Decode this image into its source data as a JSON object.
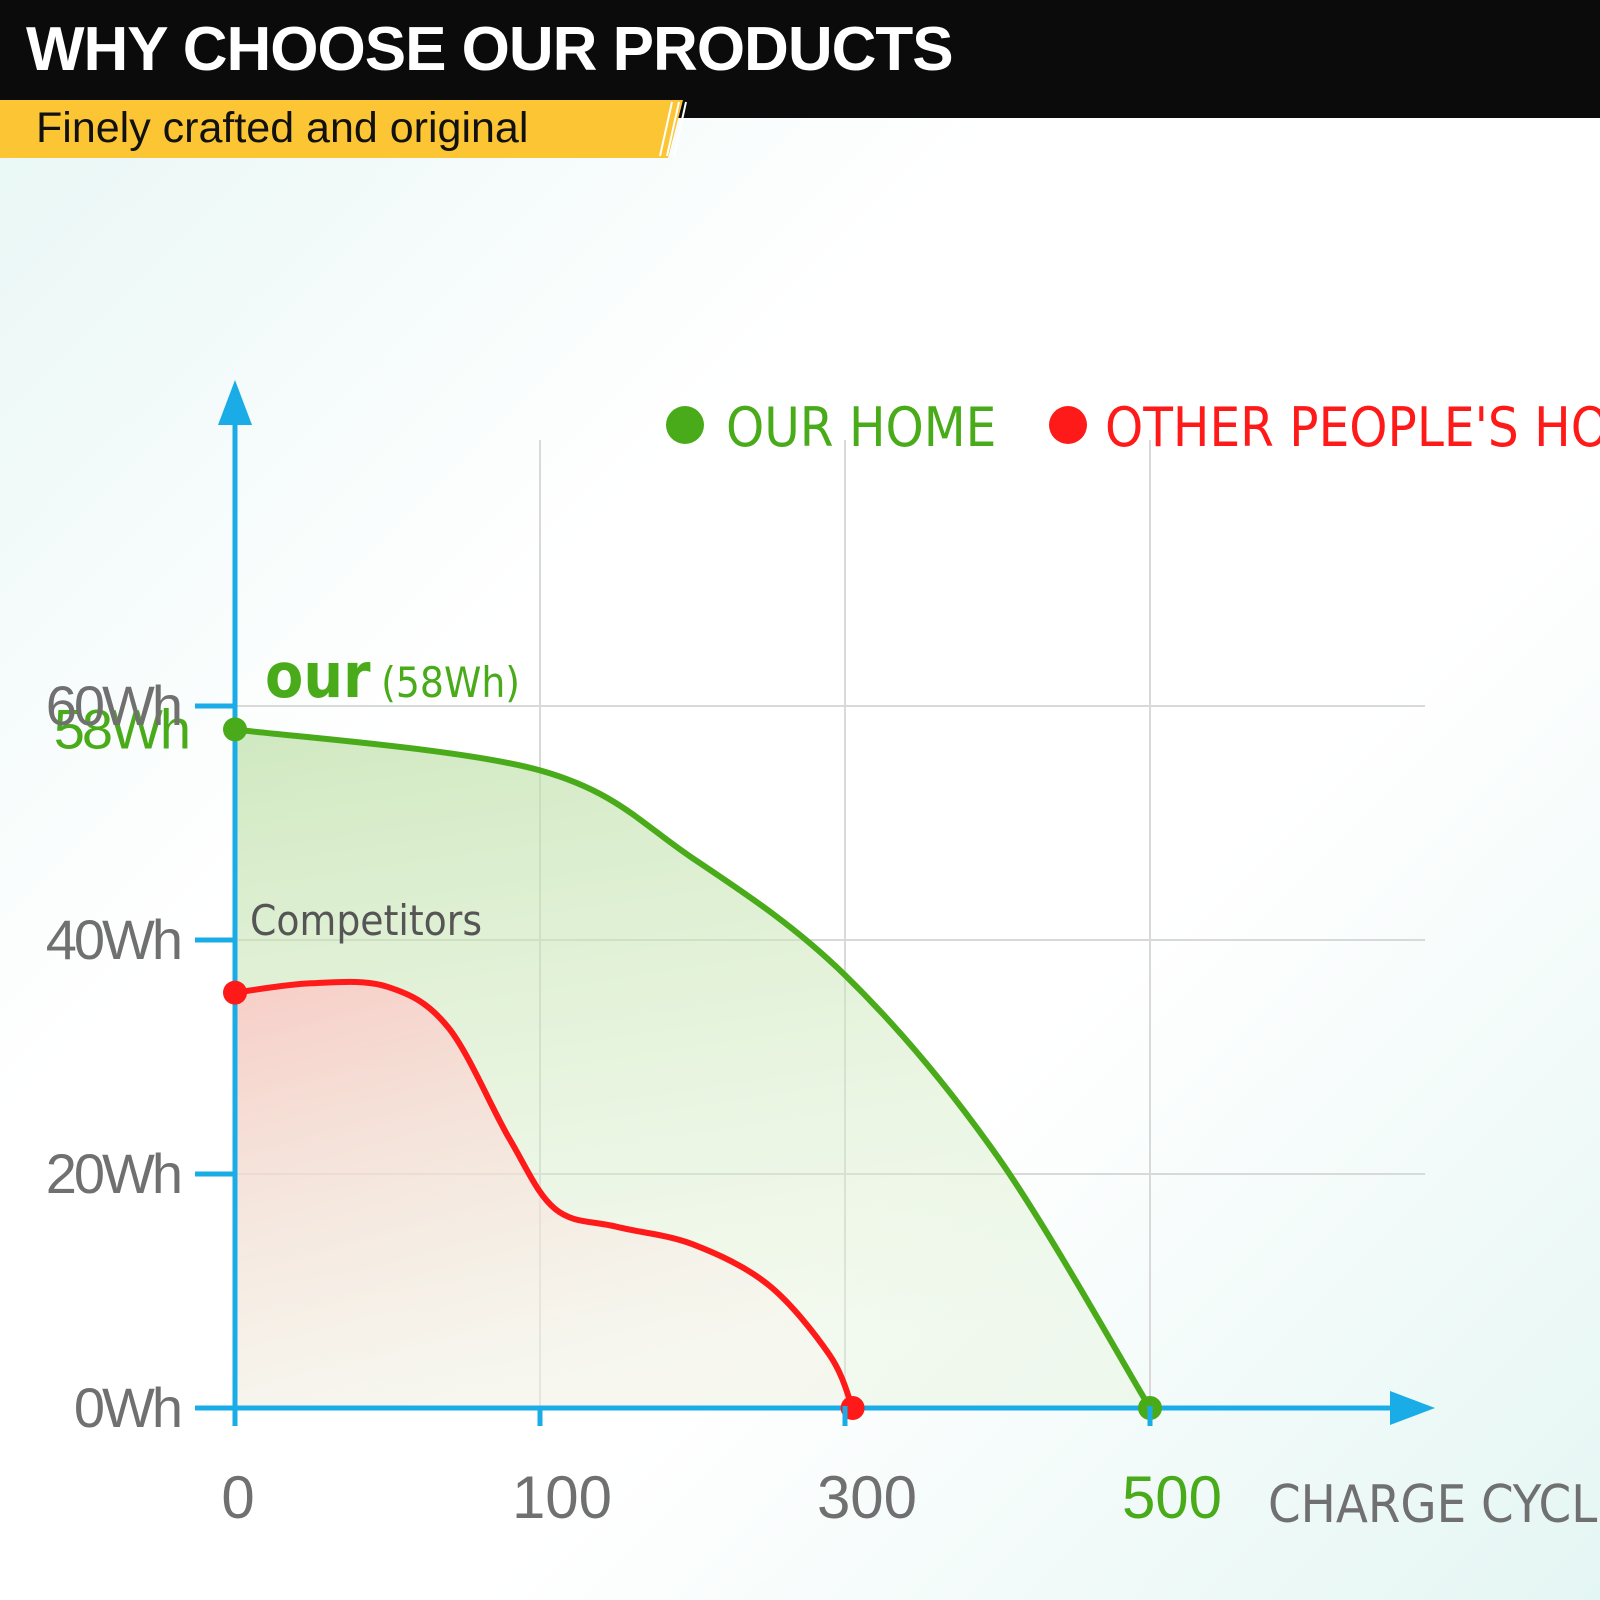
{
  "header": {
    "title": "WHY CHOOSE OUR PRODUCTS",
    "subtitle": "Finely crafted and original"
  },
  "annotations": {
    "our_prefix": "our",
    "our_value": "(58Wh)",
    "competitors": "Competitors"
  },
  "colors": {
    "axis": "#1aace6",
    "ours": "#4aab1a",
    "competitor": "#ff1a1a",
    "tick_text": "#707070",
    "grid": "#d9d9d9",
    "ribbon": "#fcc533"
  },
  "chart_data": {
    "type": "area",
    "title": "",
    "xlabel": "CHARGE CYCLES",
    "ylabel": "",
    "legend_position": "top-right",
    "grid": true,
    "x_ticks": [
      {
        "value": 0,
        "label": "0",
        "color": "#707070"
      },
      {
        "value": 100,
        "label": "100",
        "color": "#707070"
      },
      {
        "value": 300,
        "label": "300",
        "color": "#707070"
      },
      {
        "value": 500,
        "label": "500",
        "color": "#4aab1a"
      }
    ],
    "y_ticks": [
      {
        "value": 0,
        "label": "0Wh",
        "color": "#707070"
      },
      {
        "value": 20,
        "label": "20Wh",
        "color": "#707070"
      },
      {
        "value": 40,
        "label": "40Wh",
        "color": "#707070"
      },
      {
        "value": 58,
        "label": "58Wh",
        "color": "#4aab1a"
      },
      {
        "value": 60,
        "label": "60Wh",
        "color": "#707070"
      }
    ],
    "series": [
      {
        "name": "OUR HOME",
        "color": "#4aab1a",
        "points": [
          [
            0,
            58
          ],
          [
            100,
            54.5
          ],
          [
            200,
            47
          ],
          [
            300,
            37
          ],
          [
            400,
            21.5
          ],
          [
            500,
            0
          ]
        ]
      },
      {
        "name": "OTHER PEOPLE'S HOME",
        "color": "#ff1a1a",
        "points": [
          [
            0,
            35.5
          ],
          [
            25,
            36.3
          ],
          [
            50,
            36
          ],
          [
            70,
            32.5
          ],
          [
            90,
            23
          ],
          [
            110,
            17
          ],
          [
            150,
            15.5
          ],
          [
            200,
            14
          ],
          [
            250,
            10.5
          ],
          [
            290,
            4.5
          ],
          [
            305,
            0
          ]
        ]
      }
    ]
  }
}
